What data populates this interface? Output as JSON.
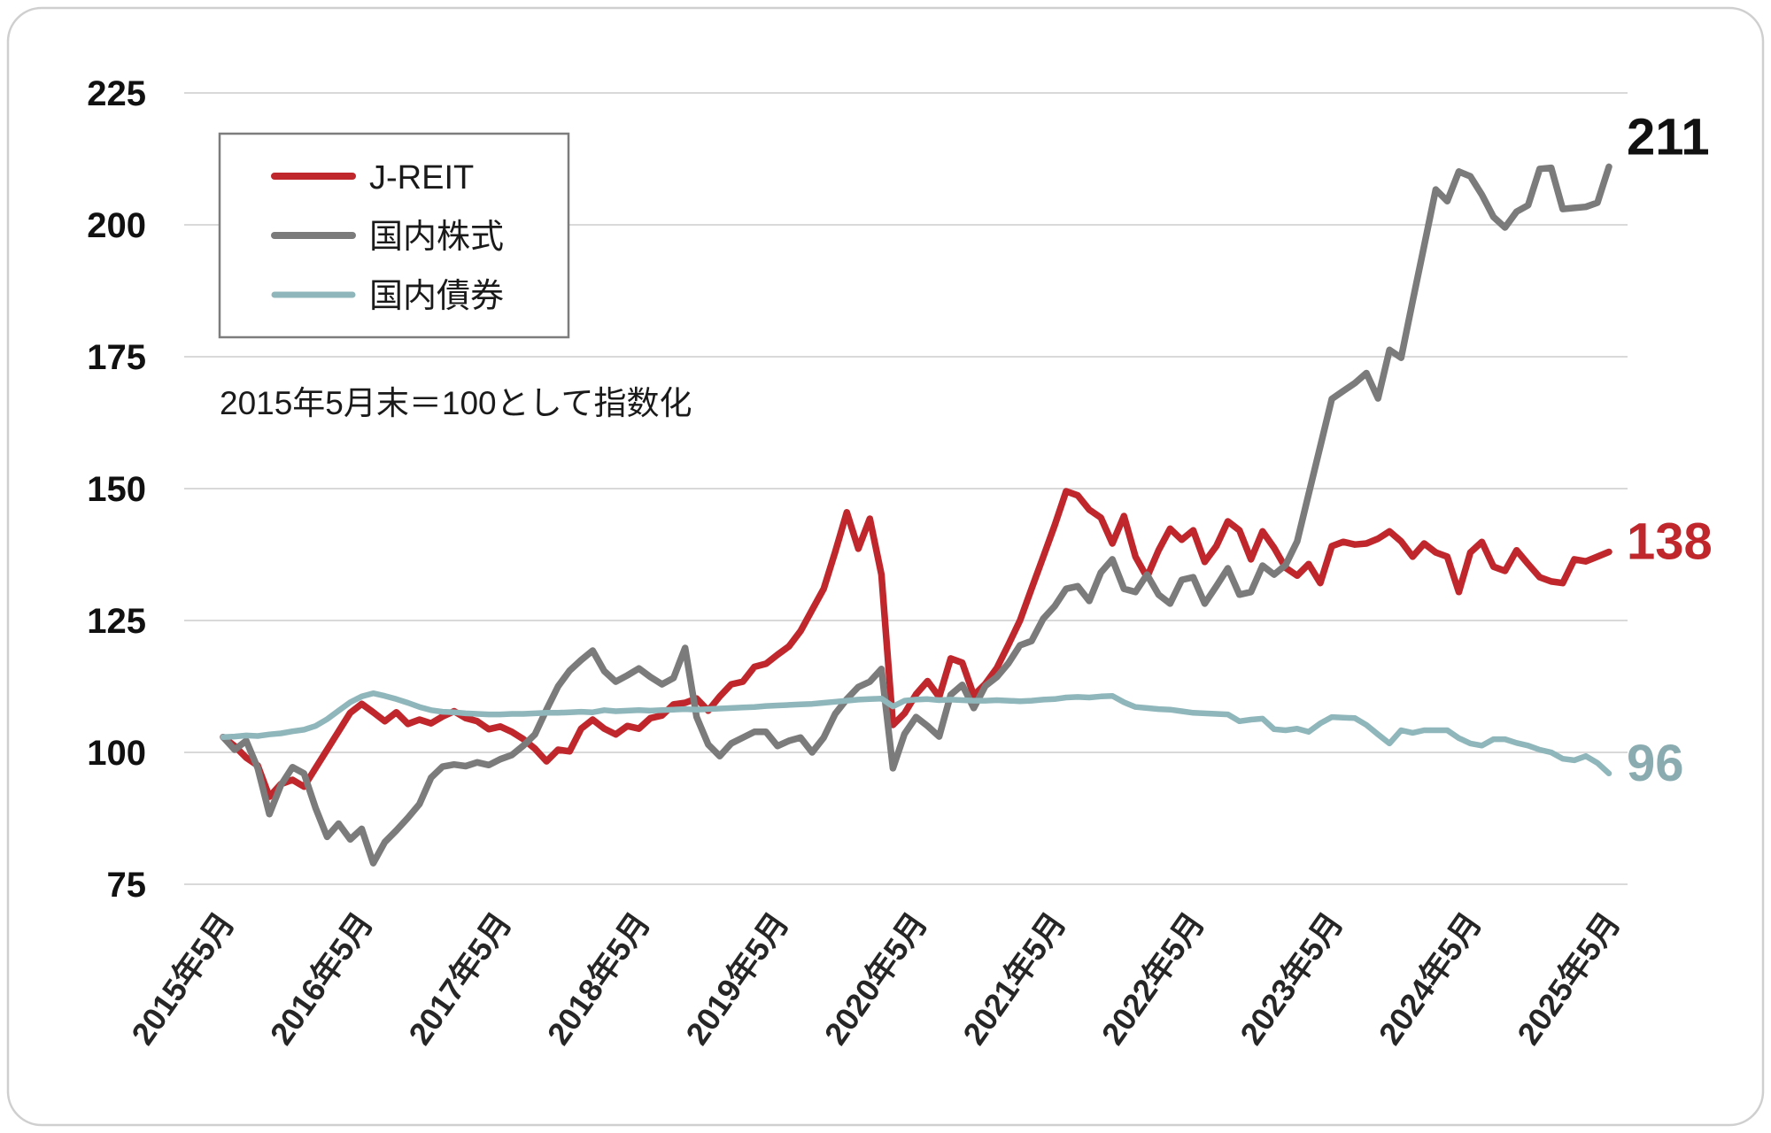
{
  "chart_data": {
    "type": "line",
    "annotation": "2015年5月末＝100として指数化",
    "grid": "horizontal-only",
    "legend_position": "top-left",
    "ylim": [
      75,
      225
    ],
    "y_ticks": [
      75,
      100,
      125,
      150,
      175,
      200,
      225
    ],
    "x_tick_labels": [
      "2015年5月",
      "2016年5月",
      "2017年5月",
      "2018年5月",
      "2019年5月",
      "2020年5月",
      "2021年5月",
      "2022年5月",
      "2023年5月",
      "2024年5月",
      "2025年5月"
    ],
    "x_tick_month_indices": [
      0,
      12,
      24,
      36,
      48,
      60,
      72,
      84,
      96,
      108,
      120
    ],
    "x_start": "2015年5月",
    "x_end": "2025年5月",
    "x_frequency": "monthly",
    "colors": {
      "grid": "#d9d9d9",
      "axis_text": "#111111",
      "x_axis_text": "#262626",
      "legend_border": "#7d7d7d",
      "legend_text": "#1a1a1a",
      "annotation_text": "#1a1a1a",
      "card_border": "#cfcfcf"
    },
    "series": [
      {
        "name": "J-REIT",
        "color": "#c0272c",
        "end_label": "138",
        "end_label_color": "#bf272d",
        "values": [
          102.9,
          101.2,
          99.0,
          97.5,
          91.6,
          94.0,
          94.8,
          93.5,
          97.0,
          100.5,
          104.0,
          107.5,
          109.2,
          107.6,
          105.9,
          107.6,
          105.4,
          106.2,
          105.5,
          106.8,
          107.8,
          106.5,
          105.9,
          104.4,
          104.9,
          103.9,
          102.5,
          100.7,
          98.3,
          100.5,
          100.2,
          104.5,
          106.2,
          104.5,
          103.4,
          105.0,
          104.5,
          106.5,
          107.0,
          109.1,
          109.4,
          110.2,
          107.9,
          110.6,
          112.9,
          113.4,
          116.2,
          116.8,
          118.5,
          120.1,
          123.0,
          127.0,
          131.0,
          138.0,
          145.5,
          138.6,
          144.3,
          133.7,
          105.2,
          107.4,
          111.0,
          113.5,
          110.5,
          117.8,
          117.0,
          110.8,
          113.0,
          116.0,
          120.4,
          125.0,
          131.0,
          137.0,
          143.0,
          149.5,
          148.7,
          146.0,
          144.5,
          139.6,
          144.8,
          137.1,
          133.2,
          138.3,
          142.4,
          140.3,
          142.1,
          136.1,
          139.1,
          143.8,
          142.1,
          136.6,
          141.9,
          138.8,
          135.0,
          133.5,
          135.7,
          132.1,
          139.1,
          139.9,
          139.4,
          139.6,
          140.5,
          141.9,
          140.0,
          137.1,
          139.6,
          137.9,
          137.1,
          130.4,
          137.9,
          139.9,
          135.2,
          134.4,
          138.3,
          135.7,
          133.2,
          132.4,
          132.1,
          136.6,
          136.2,
          137.1,
          138.0
        ]
      },
      {
        "name": "国内株式",
        "color": "#7b7b7b",
        "end_label": "211",
        "end_label_color": "#111111",
        "values": [
          102.9,
          100.5,
          102.2,
          97.0,
          88.3,
          93.8,
          97.2,
          96.0,
          89.5,
          84.0,
          86.5,
          83.5,
          85.5,
          79.0,
          83.0,
          85.2,
          87.6,
          90.2,
          95.2,
          97.3,
          97.7,
          97.4,
          98.1,
          97.6,
          98.7,
          99.5,
          101.3,
          103.4,
          108.1,
          112.5,
          115.5,
          117.5,
          119.3,
          115.4,
          113.4,
          114.6,
          115.9,
          114.3,
          112.9,
          114.1,
          119.8,
          106.7,
          101.5,
          99.3,
          101.7,
          102.8,
          103.9,
          103.9,
          101.2,
          102.2,
          102.8,
          100.0,
          102.8,
          107.3,
          110.1,
          112.4,
          113.4,
          115.8,
          97.0,
          103.5,
          106.7,
          105.0,
          103.0,
          110.9,
          112.8,
          108.4,
          112.6,
          114.3,
          116.9,
          120.3,
          121.1,
          125.3,
          127.7,
          131.0,
          131.5,
          128.7,
          134.1,
          136.6,
          131.0,
          130.4,
          133.7,
          129.9,
          128.2,
          132.7,
          133.2,
          128.2,
          131.5,
          134.9,
          129.9,
          130.4,
          135.4,
          133.7,
          135.5,
          140.0,
          149.0,
          158.0,
          167.0,
          168.5,
          170.0,
          171.9,
          167.1,
          176.3,
          174.8,
          185.5,
          196.0,
          206.7,
          204.5,
          210.1,
          209.2,
          205.7,
          201.5,
          199.5,
          202.5,
          203.7,
          210.6,
          210.8,
          203.0,
          203.2,
          203.4,
          204.2,
          211.0
        ]
      },
      {
        "name": "国内債券",
        "color": "#8fb6ba",
        "end_label": "96",
        "end_label_color": "#8aacb0",
        "values": [
          102.9,
          103.0,
          103.2,
          103.1,
          103.4,
          103.6,
          104.0,
          104.3,
          105.0,
          106.3,
          107.9,
          109.5,
          110.6,
          111.2,
          110.7,
          110.1,
          109.4,
          108.6,
          108.0,
          107.7,
          107.6,
          107.4,
          107.3,
          107.2,
          107.2,
          107.3,
          107.3,
          107.4,
          107.5,
          107.5,
          107.6,
          107.7,
          107.6,
          108.0,
          107.8,
          107.9,
          108.0,
          107.9,
          108.0,
          108.1,
          108.2,
          108.1,
          108.2,
          108.3,
          108.4,
          108.5,
          108.6,
          108.8,
          108.9,
          109.0,
          109.1,
          109.2,
          109.4,
          109.6,
          109.8,
          110.0,
          110.1,
          110.2,
          108.7,
          109.8,
          110.0,
          110.1,
          109.9,
          110.0,
          109.9,
          109.8,
          109.8,
          109.9,
          109.8,
          109.7,
          109.8,
          110.0,
          110.1,
          110.4,
          110.5,
          110.4,
          110.6,
          110.7,
          109.5,
          108.6,
          108.4,
          108.2,
          108.1,
          107.8,
          107.5,
          107.4,
          107.3,
          107.2,
          105.9,
          106.2,
          106.4,
          104.4,
          104.2,
          104.5,
          103.9,
          105.5,
          106.7,
          106.6,
          106.5,
          105.2,
          103.4,
          101.7,
          104.2,
          103.7,
          104.2,
          104.2,
          104.2,
          102.7,
          101.7,
          101.3,
          102.5,
          102.5,
          101.8,
          101.3,
          100.5,
          100.0,
          98.8,
          98.5,
          99.3,
          98.0,
          96.0
        ]
      }
    ]
  }
}
